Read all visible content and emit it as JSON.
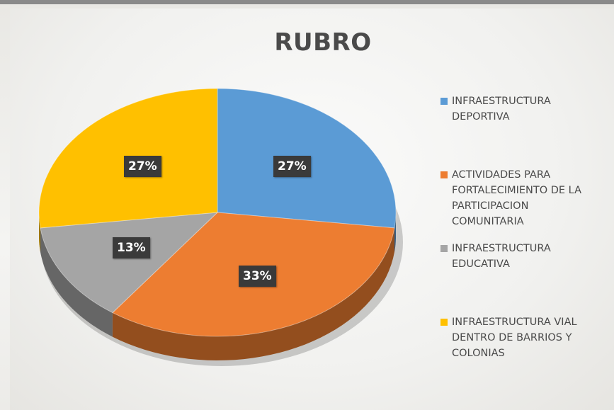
{
  "chart_data": {
    "type": "pie",
    "title": "RUBRO",
    "legend_position": "right",
    "categories": [
      "INFRAESTRUCTURA DEPORTIVA",
      "ACTIVIDADES PARA FORTALECIMIENTO DE LA PARTICIPACION COMUNITARIA",
      "INFRAESTRUCTURA EDUCATIVA",
      "INFRAESTRUCTURA VIAL DENTRO DE BARRIOS Y COLONIAS"
    ],
    "values": [
      27,
      33,
      13,
      27
    ],
    "labels": [
      "27%",
      "33%",
      "13%",
      "27%"
    ],
    "colors": [
      "#5b9bd5",
      "#ed7d31",
      "#a5a5a5",
      "#ffc000"
    ],
    "legend_lines": [
      "INFRAESTRUCTURA\nDEPORTIVA",
      "ACTIVIDADES PARA\nFORTALECIMIENTO DE LA\nPARTICIPACION\nCOMUNITARIA",
      "INFRAESTRUCTURA\nEDUCATIVA",
      "INFRAESTRUCTURA VIAL\nDENTRO DE BARRIOS Y\nCOLONIAS"
    ]
  }
}
